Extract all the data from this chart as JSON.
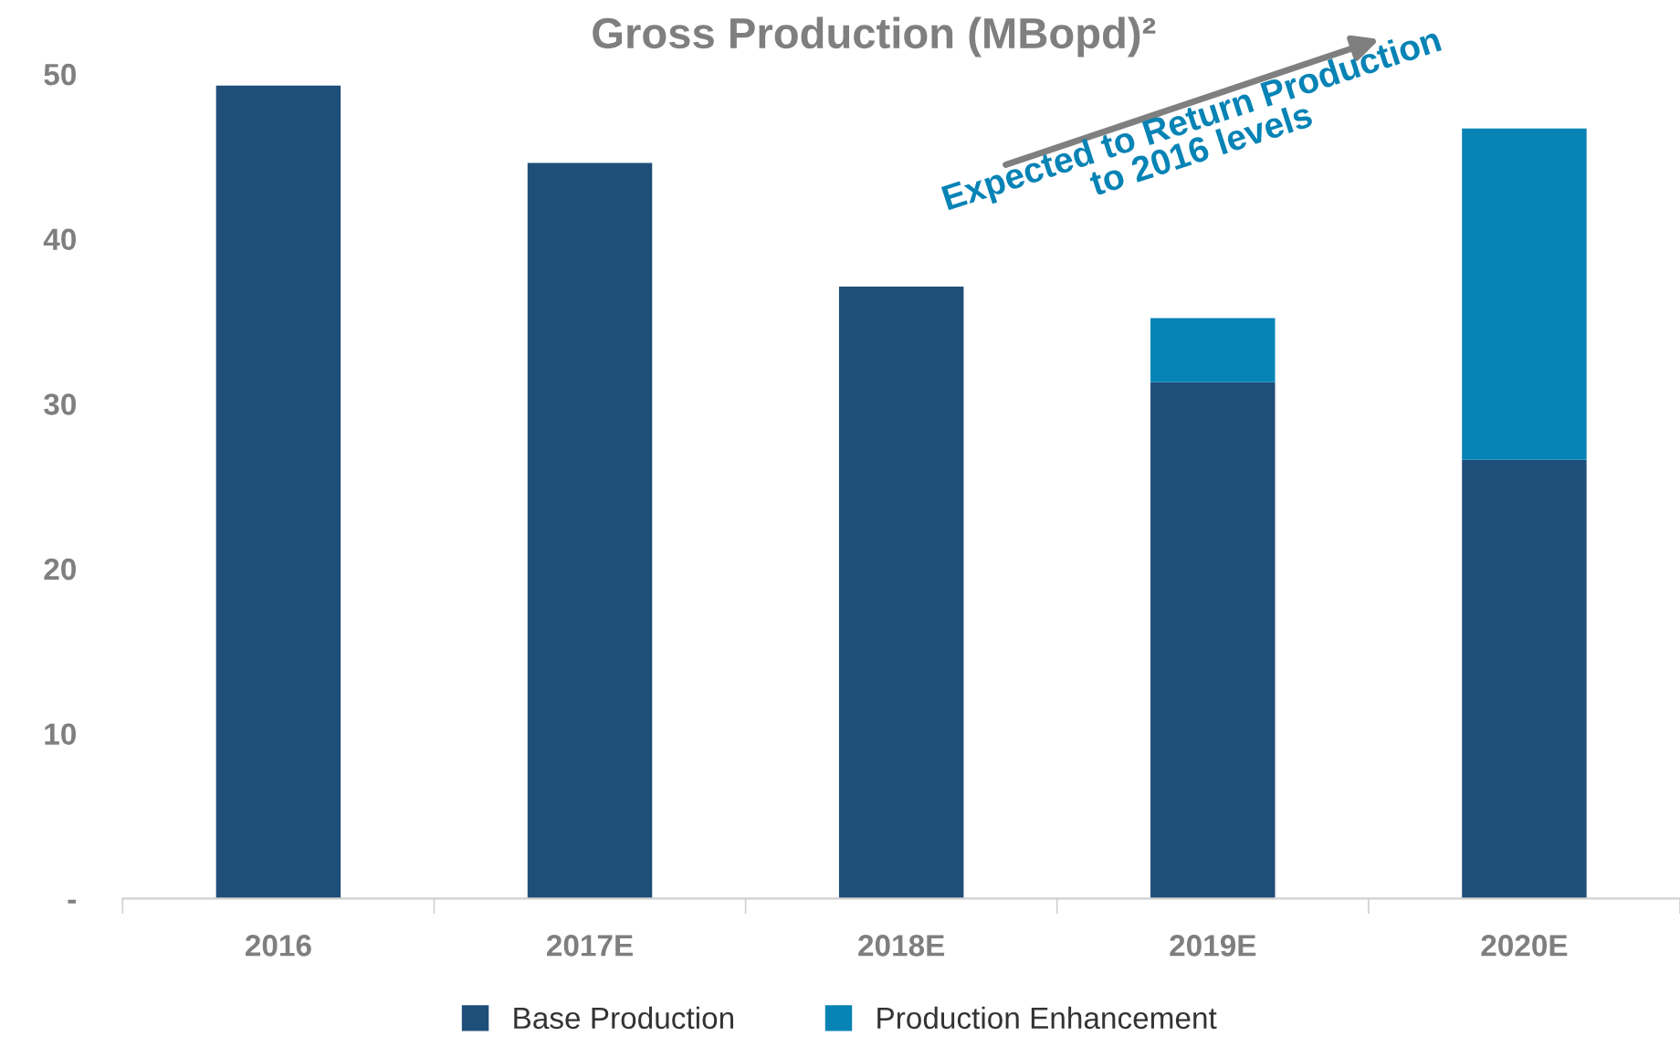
{
  "chart_data": {
    "type": "bar",
    "title": "Gross Production (MBopd)²",
    "stacked": true,
    "categories": [
      "2016",
      "2017E",
      "2018E",
      "2019E",
      "2020E"
    ],
    "series": [
      {
        "name": "Base Production",
        "color": "#1f4e79",
        "values": [
          49.3,
          44.6,
          37.1,
          31.3,
          26.6
        ]
      },
      {
        "name": "Production Enhancement",
        "color": "#0783b5",
        "values": [
          null,
          null,
          null,
          3.9,
          20.1
        ]
      }
    ],
    "ylim": [
      0,
      50
    ],
    "yticks": [
      {
        "value": 0,
        "label": "-"
      },
      10,
      20,
      30,
      40,
      50
    ],
    "annotations": [
      "Expected to Return Production\nto 2016 levels"
    ],
    "grid": false,
    "legend": "bottom"
  }
}
